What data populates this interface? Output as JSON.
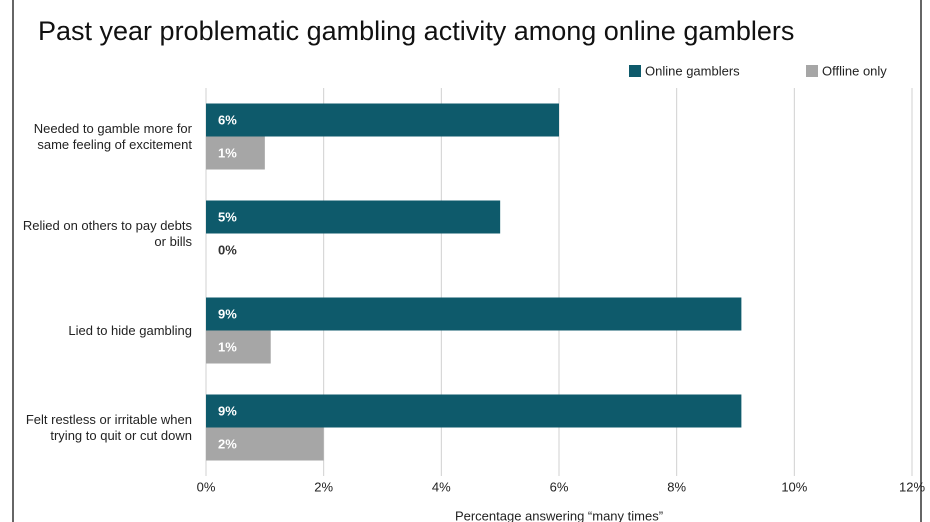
{
  "chart_data": {
    "type": "barh",
    "title": "Past year problematic gambling activity among online gamblers",
    "xlabel": "Percentage answering “many times”",
    "categories": [
      "Needed to gamble more for same feeling of excitement",
      "Relied on others to pay debts or bills",
      "Lied to hide gambling",
      "Felt restless or irritable when trying to quit or cut down"
    ],
    "series": [
      {
        "name": "Online gamblers",
        "color": "#0e5a6b",
        "values": [
          6.0,
          5.0,
          9.1,
          9.1
        ],
        "value_labels": [
          "6%",
          "5%",
          "9%",
          "9%"
        ]
      },
      {
        "name": "Offline only",
        "color": "#a6a6a6",
        "values": [
          1.0,
          0,
          1.1,
          2.0
        ],
        "value_labels": [
          "1%",
          "0%",
          "1%",
          "2%"
        ]
      }
    ],
    "xlim": [
      0,
      12
    ],
    "xticks": [
      {
        "value": 0,
        "label": "0%"
      },
      {
        "value": 2,
        "label": "2%"
      },
      {
        "value": 4,
        "label": "4%"
      },
      {
        "value": 6,
        "label": "6%"
      },
      {
        "value": 8,
        "label": "8%"
      },
      {
        "value": 10,
        "label": "10%"
      },
      {
        "value": 12,
        "label": "12%"
      }
    ],
    "grid": true,
    "legend": "top-right"
  }
}
